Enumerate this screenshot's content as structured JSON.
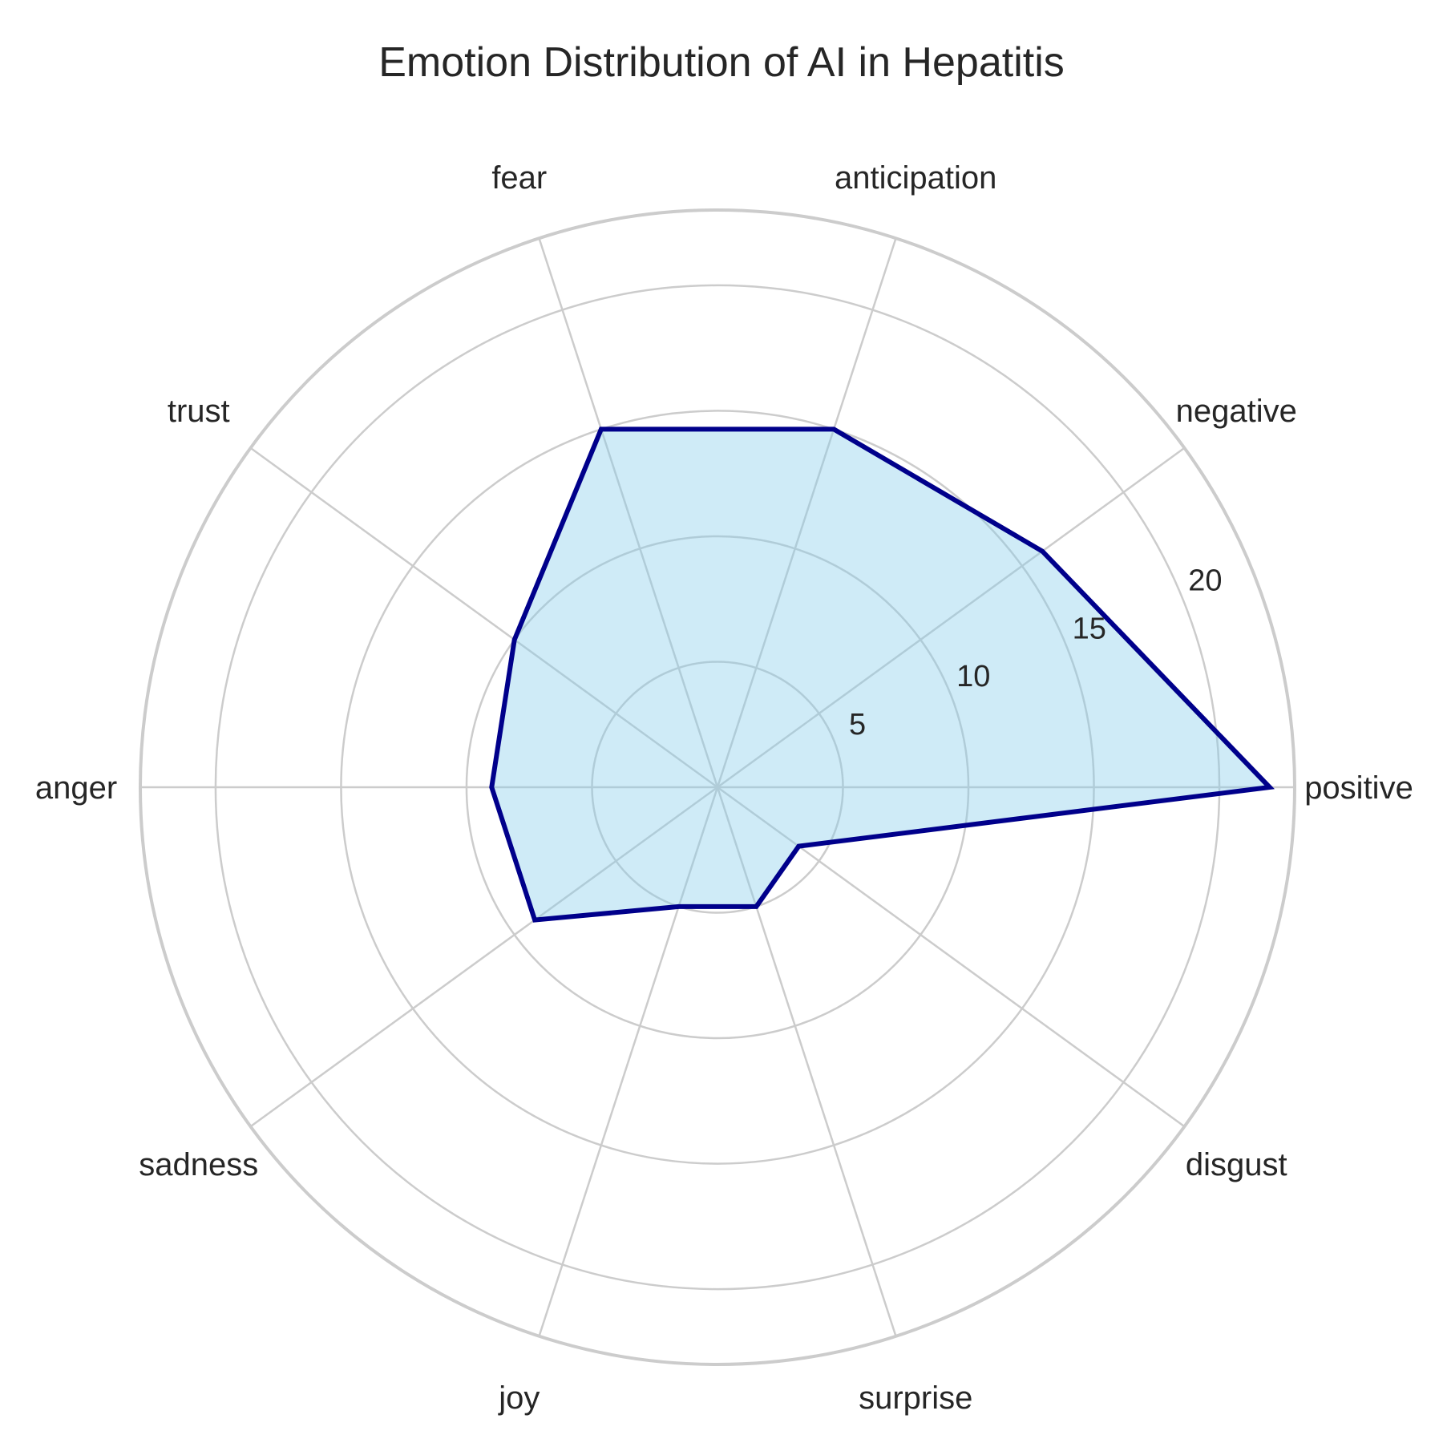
{
  "chart_data": {
    "type": "radar",
    "title": "Emotion Distribution of AI in Hepatitis",
    "categories": [
      "positive",
      "negative",
      "anticipation",
      "fear",
      "trust",
      "anger",
      "sadness",
      "joy",
      "surprise",
      "disgust"
    ],
    "series": [
      {
        "values": [
          22,
          16,
          15,
          15,
          10,
          9,
          9,
          5,
          5,
          4
        ]
      }
    ],
    "rlim": [
      0,
      23
    ],
    "rticks": [
      5,
      10,
      15,
      20
    ],
    "rtick_labels": [
      "5",
      "10",
      "15",
      "20"
    ],
    "grid": true,
    "colors": {
      "line": "#00008b",
      "fill": "#87ceeb",
      "grid": "#cccccc",
      "tick_label": "#262626"
    }
  }
}
